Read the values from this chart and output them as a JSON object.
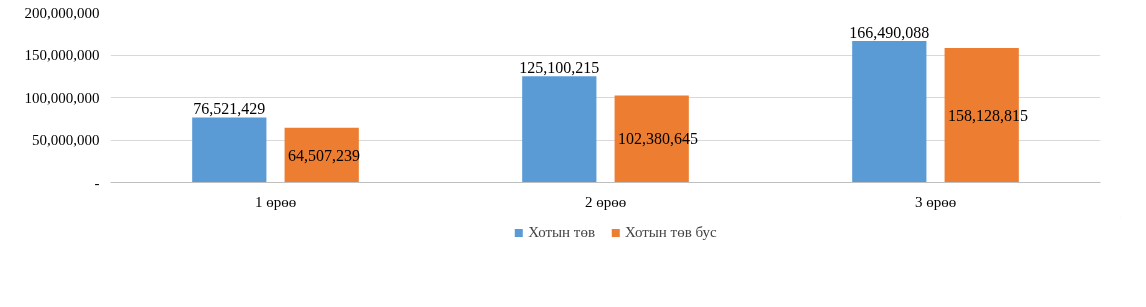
{
  "chart_data": {
    "type": "bar",
    "categories": [
      "1 өрөө",
      "2 өрөө",
      "3 өрөө"
    ],
    "series": [
      {
        "name": "Хотын төв",
        "color": "#5b9bd5",
        "values": [
          76521429,
          125100215,
          166490088
        ],
        "value_labels": [
          "76,521,429",
          "125,100,215",
          "166,490,088"
        ]
      },
      {
        "name": "Хотын төв бус",
        "color": "#ed7d31",
        "values": [
          64507239,
          102380645,
          158128815
        ],
        "value_labels": [
          "64,507,239",
          "102,380,645",
          "158,128,815"
        ]
      }
    ],
    "ylim": [
      0,
      200000000
    ],
    "yticks": [
      {
        "value": 0,
        "label": "-"
      },
      {
        "value": 50000000,
        "label": "50,000,000"
      },
      {
        "value": 100000000,
        "label": "100,000,000"
      },
      {
        "value": 150000000,
        "label": "150,000,000"
      },
      {
        "value": 200000000,
        "label": "200,000,000"
      }
    ],
    "grid": "y",
    "legend": "bottom",
    "data_labels": true
  }
}
